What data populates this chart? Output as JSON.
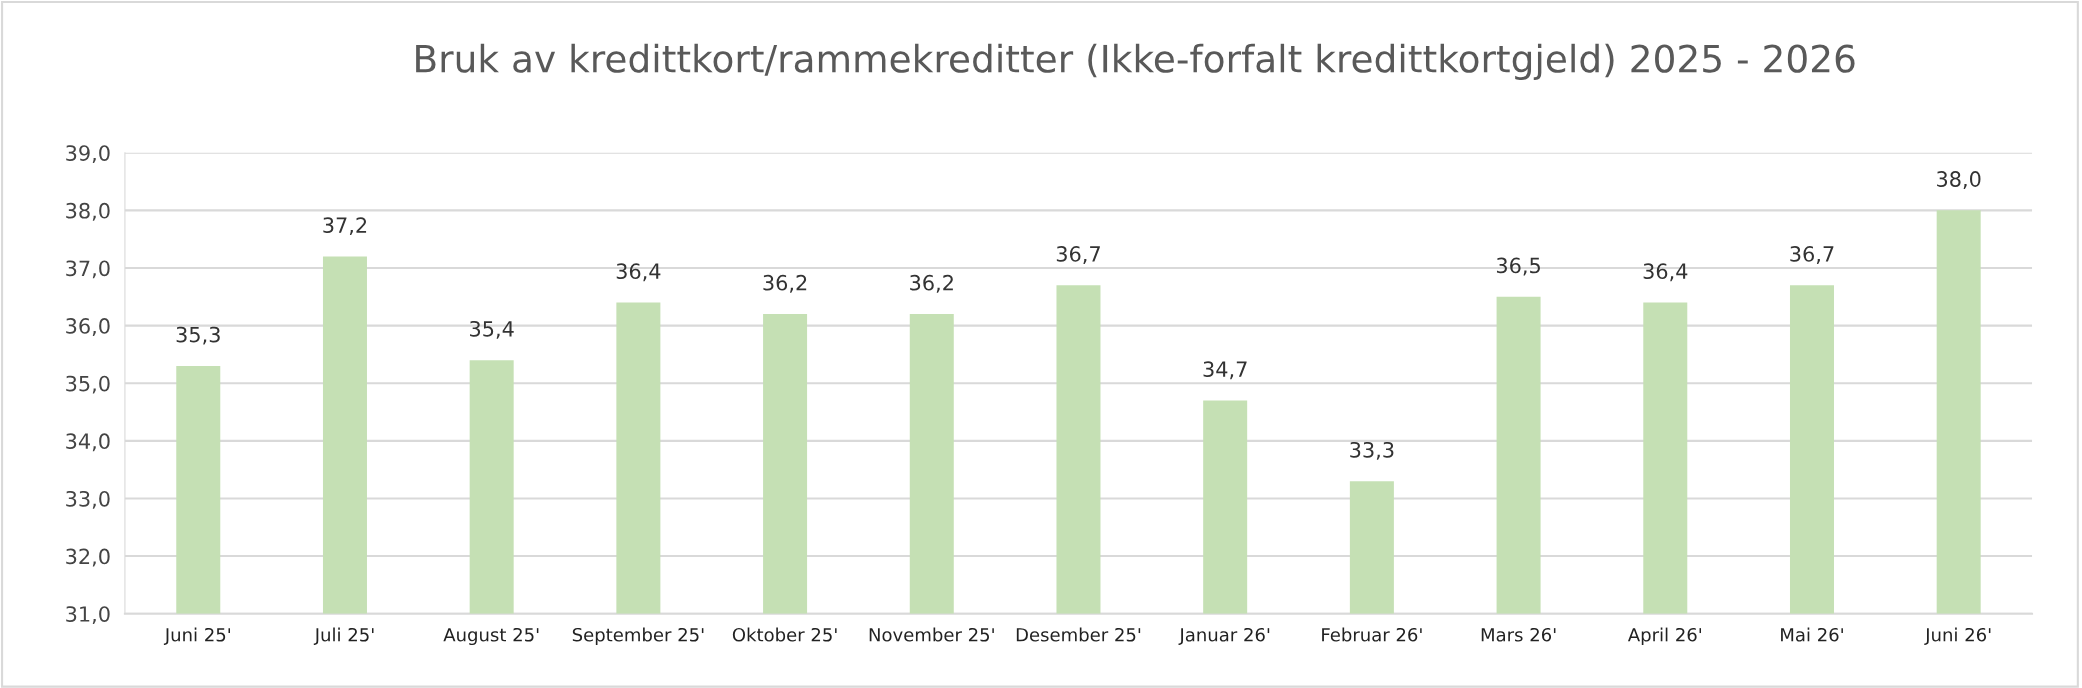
{
  "chart_data": {
    "type": "bar",
    "title": "Bruk av kredittkort/rammekreditter (Ikke-forfalt kredittkortgjeld) 2025 - 2026",
    "categories": [
      "Juni 25'",
      "Juli 25'",
      "August 25'",
      "September 25'",
      "Oktober 25'",
      "November 25'",
      "Desember 25'",
      "Januar 26'",
      "Februar 26'",
      "Mars 26'",
      "April 26'",
      "Mai 26'",
      "Juni 26'"
    ],
    "values": [
      35.3,
      37.2,
      35.4,
      36.4,
      36.2,
      36.2,
      36.7,
      34.7,
      33.3,
      36.5,
      36.4,
      36.7,
      38.0
    ],
    "value_labels": [
      "35,3",
      "37,2",
      "35,4",
      "36,4",
      "36,2",
      "36,2",
      "36,7",
      "34,7",
      "33,3",
      "36,5",
      "36,4",
      "36,7",
      "38,0"
    ],
    "color": "#c5e0b4",
    "ylim": [
      31,
      39
    ],
    "yticks": [
      {
        "value": 31,
        "label": "31,0"
      },
      {
        "value": 32,
        "label": "32,0"
      },
      {
        "value": 33,
        "label": "33,0"
      },
      {
        "value": 34,
        "label": "34,0"
      },
      {
        "value": 35,
        "label": "35,0"
      },
      {
        "value": 36,
        "label": "36,0"
      },
      {
        "value": 37,
        "label": "37,0"
      },
      {
        "value": 38,
        "label": "38,0"
      },
      {
        "value": 39,
        "label": "39,0"
      }
    ],
    "grid": "y",
    "legend": false
  }
}
